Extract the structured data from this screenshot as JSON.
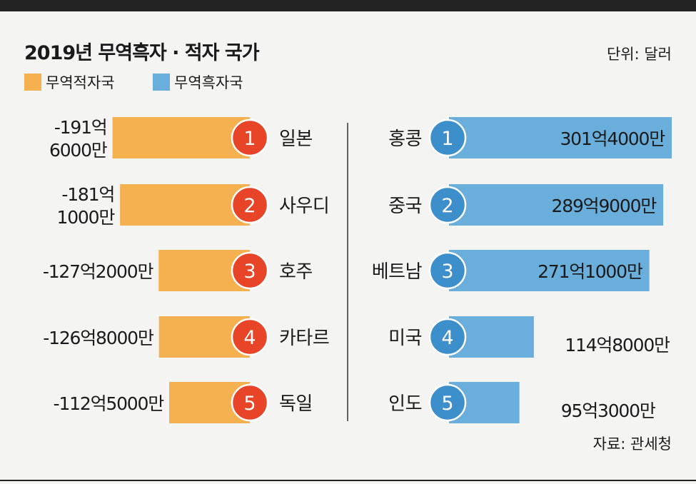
{
  "title": "2019년 무역흑자 · 적자 국가",
  "unit": "단위: 달러",
  "source": "자료: 관세청",
  "colors": {
    "deficit": "#f5b04f",
    "surplus": "#6aaedb",
    "deficit_circle": "#e84427",
    "surplus_circle": "#3d8fcc"
  },
  "chart_data": {
    "type": "bar",
    "title": "2019년 무역흑자 · 적자 국가",
    "unit": "단위: 달러",
    "series": [
      {
        "name": "무역적자국",
        "color": "#f5b04f",
        "circle_color": "#e84427",
        "categories": [
          "일본",
          "사우디",
          "호주",
          "카타르",
          "독일"
        ],
        "ranks": [
          "1",
          "2",
          "3",
          "4",
          "5"
        ],
        "values": [
          -19160000000,
          -18110000000,
          -12720000000,
          -12680000000,
          -11250000000
        ],
        "labels": [
          [
            "-191억",
            "6000만"
          ],
          [
            "-181억",
            "1000만"
          ],
          [
            "-127억2000만"
          ],
          [
            "-126억8000만"
          ],
          [
            "-112억5000만"
          ]
        ]
      },
      {
        "name": "무역흑자국",
        "color": "#6aaedb",
        "circle_color": "#3d8fcc",
        "categories": [
          "홍콩",
          "중국",
          "베트남",
          "미국",
          "인도"
        ],
        "ranks": [
          "1",
          "2",
          "3",
          "4",
          "5"
        ],
        "values": [
          30140000000,
          28990000000,
          27110000000,
          11480000000,
          9530000000
        ],
        "labels": [
          [
            "301억4000만"
          ],
          [
            "289억9000만"
          ],
          [
            "271억1000만"
          ],
          [
            "114억8000만"
          ],
          [
            "95억3000만"
          ]
        ]
      }
    ]
  }
}
